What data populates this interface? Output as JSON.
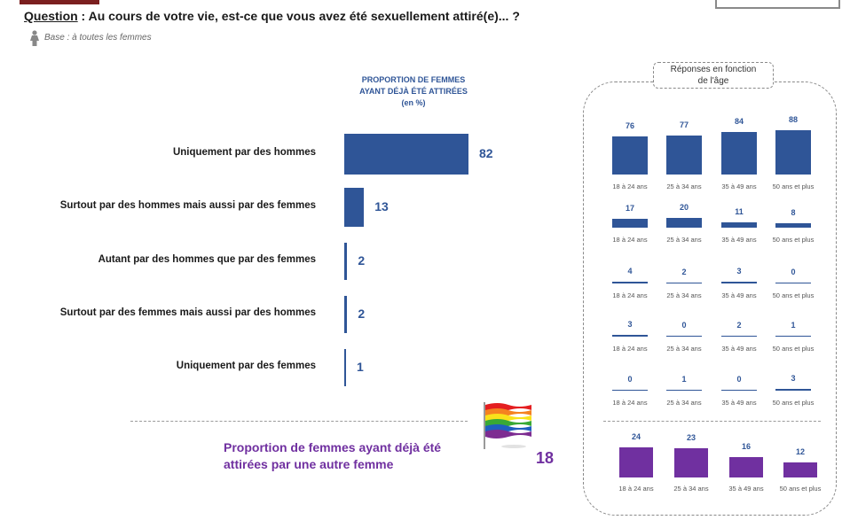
{
  "question": {
    "label": "Question",
    "text": " : Au cours de votre vie, est-ce que vous avez été sexuellement attiré(e)... ?"
  },
  "base": "Base : à toutes les femmes",
  "main_chart_title": [
    "PROPORTION DE FEMMES",
    "AYANT DÉJÀ ÉTÉ ATTIRÉES",
    "(en %)"
  ],
  "age_panel_title": [
    "Réponses en fonction",
    "de l'âge"
  ],
  "colors": {
    "blue": "#2f5597",
    "purple": "#7030a0",
    "accent": "#7b1f1f"
  },
  "icons": {
    "base": "woman-icon",
    "flag": "rainbow-flag-icon"
  },
  "summary": {
    "text_line1": "Proportion de femmes ayant déjà été",
    "text_line2": "attirées par une autre femme",
    "value": "18"
  },
  "chart_data": [
    {
      "type": "bar",
      "orientation": "horizontal",
      "categories": [
        "Uniquement par des hommes",
        "Surtout par des hommes mais aussi par des femmes",
        "Autant par des hommes que par des femmes",
        "Surtout par des femmes mais aussi par des hommes",
        "Uniquement par des femmes"
      ],
      "values": [
        82,
        13,
        2,
        2,
        1
      ]
    },
    {
      "type": "bar",
      "age_groups": [
        "18 à 24 ans",
        "25 à 34 ans",
        "35 à 49 ans",
        "50 ans et plus"
      ],
      "series": [
        {
          "name": "Uniquement par des hommes",
          "values": [
            76,
            77,
            84,
            88
          ]
        },
        {
          "name": "Surtout par des hommes mais aussi par des femmes",
          "values": [
            17,
            20,
            11,
            8
          ]
        },
        {
          "name": "Autant par des hommes que par des femmes",
          "values": [
            4,
            2,
            3,
            0
          ]
        },
        {
          "name": "Surtout par des femmes mais aussi par des hommes",
          "values": [
            3,
            0,
            2,
            1
          ]
        },
        {
          "name": "Uniquement par des femmes",
          "values": [
            0,
            1,
            0,
            3
          ]
        }
      ]
    },
    {
      "type": "bar",
      "age_groups": [
        "18 à 24 ans",
        "25 à 34 ans",
        "35 à 49 ans",
        "50 ans et plus"
      ],
      "values": [
        24,
        23,
        16,
        12
      ]
    }
  ]
}
